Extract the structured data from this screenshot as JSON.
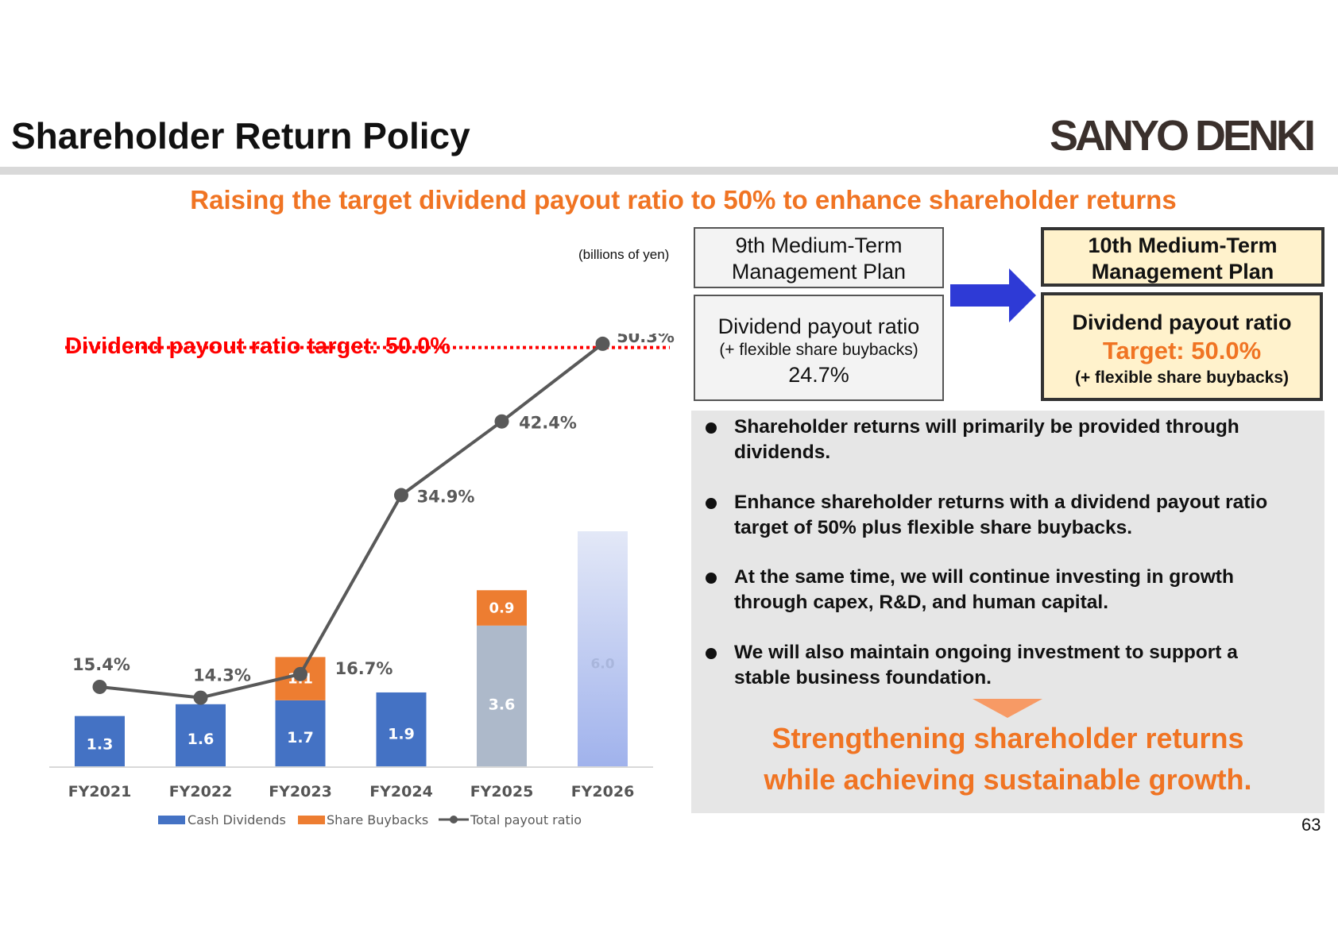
{
  "header": {
    "title": "Shareholder Return Policy",
    "logo": "SANYO DENKI",
    "subtitle": "Raising the target dividend payout ratio to 50% to enhance shareholder returns"
  },
  "chart_data": {
    "type": "bar",
    "stacked": true,
    "unit_label": "(billions of yen)",
    "target_label": "Dividend payout ratio target: 50.0%",
    "target_value": 50.0,
    "categories": [
      "FY2021",
      "FY2022",
      "FY2023",
      "FY2024",
      "FY2025",
      "FY2026"
    ],
    "series": [
      {
        "name": "Cash Dividends",
        "values": [
          1.3,
          1.6,
          1.7,
          1.9,
          3.6,
          6.0
        ],
        "labels": [
          "1.3",
          "1.6",
          "1.7",
          "1.9",
          "3.6",
          "6.0"
        ],
        "color": "#4472c4"
      },
      {
        "name": "Share Buybacks",
        "values": [
          0,
          0,
          1.1,
          0,
          0.9,
          0
        ],
        "labels": [
          "",
          "",
          "1.1",
          "",
          "0.9",
          ""
        ],
        "color": "#ed7d31"
      },
      {
        "name": "Total payout ratio",
        "type": "line",
        "values": [
          15.4,
          14.3,
          16.7,
          34.9,
          42.4,
          50.3
        ],
        "labels": [
          "15.4%",
          "14.3%",
          "16.7%",
          "34.9%",
          "42.4%",
          "50.3%"
        ],
        "color": "#595959"
      }
    ],
    "legend_position": "bottom",
    "colors": {
      "forecast_fy2025": "#adb9ca",
      "forecast_fy2026_top": "#e3e8f7",
      "forecast_fy2026_bottom": "#a0b2ec",
      "target_line": "#ff0000"
    }
  },
  "plans": {
    "ninth": {
      "header": [
        "9th Medium-Term",
        "Management Plan"
      ],
      "line1": "Dividend payout ratio",
      "line2": "(+ flexible share buybacks)",
      "line3": "24.7%"
    },
    "tenth": {
      "header": [
        "10th Medium-Term",
        "Management Plan"
      ],
      "line1": "Dividend payout ratio",
      "line2": "Target: 50.0%",
      "line3": "(+ flexible share buybacks)"
    }
  },
  "bullets": [
    [
      "Shareholder returns will primarily be provided through",
      "dividends."
    ],
    [
      "Enhance shareholder returns with a dividend payout ratio",
      "target of 50% plus flexible share buybacks."
    ],
    [
      "At the same time, we will continue investing in growth",
      "through capex, R&D, and human capital."
    ],
    [
      "We will also maintain ongoing investment to support a",
      "stable business foundation."
    ]
  ],
  "conclusion": [
    "Strengthening shareholder returns",
    "while achieving sustainable growth."
  ],
  "page_number": "63",
  "colors": {
    "accent_orange": "#f07423",
    "arrow_blue": "#2e3ad6",
    "plan10_fill": "#fff2cc",
    "panel_gray": "#e6e6e6"
  }
}
